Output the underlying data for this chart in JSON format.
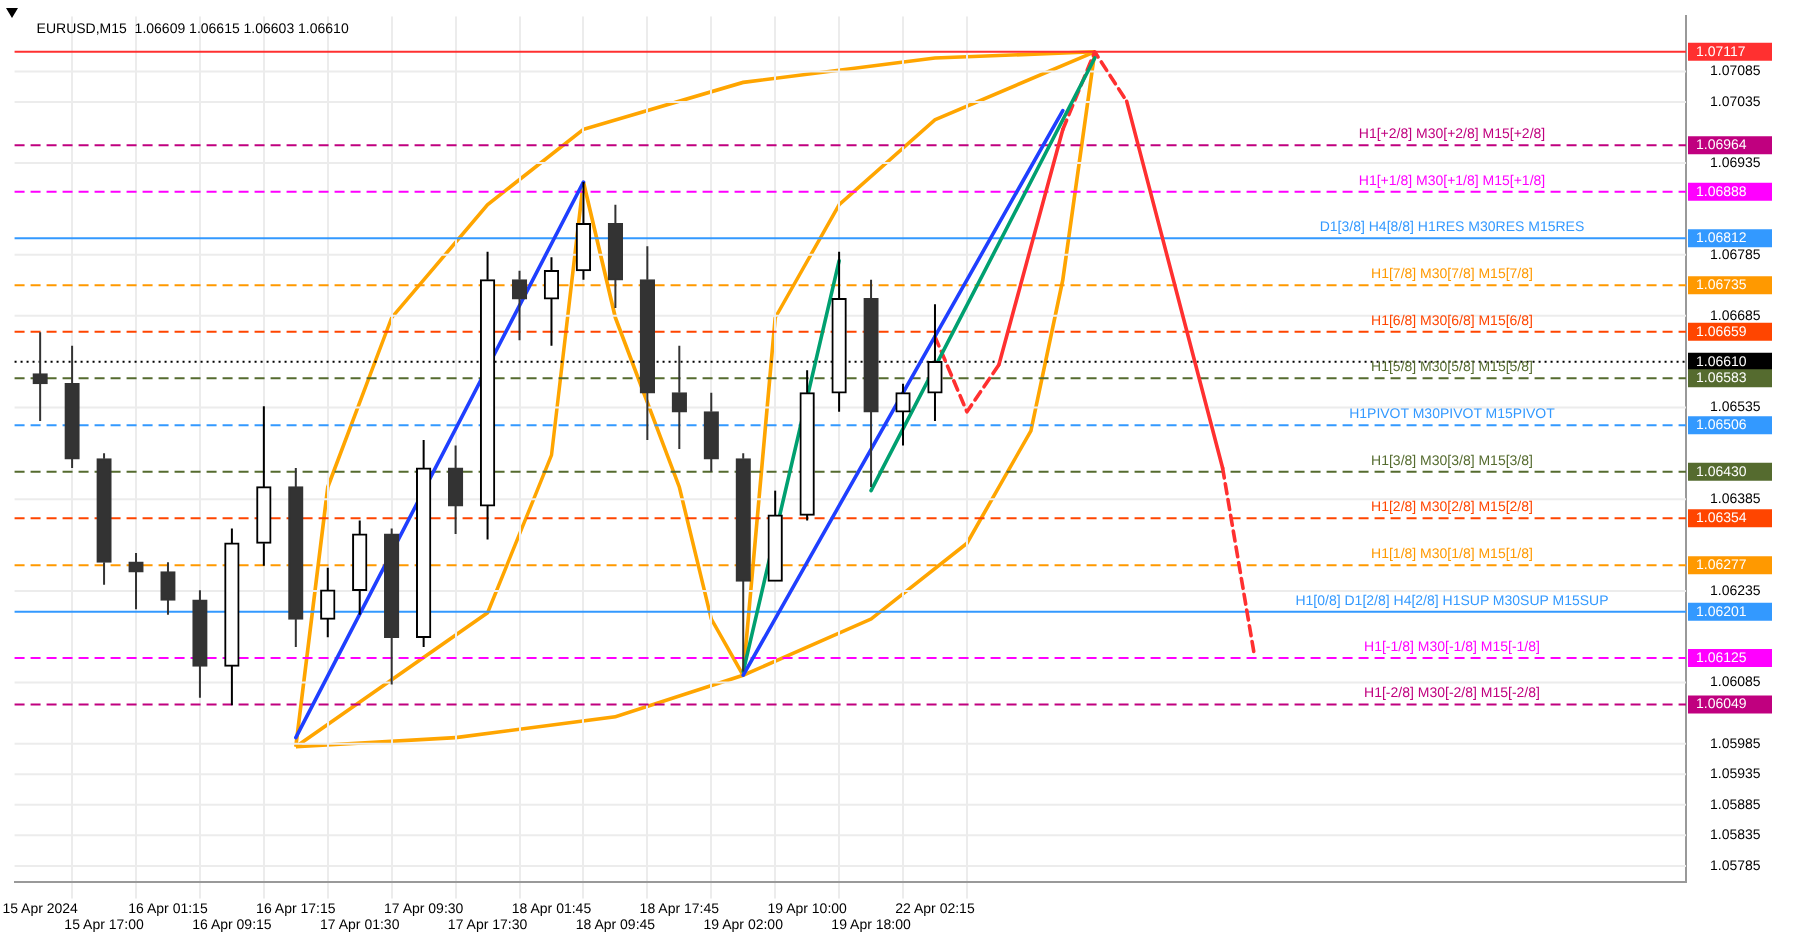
{
  "chart_data": {
    "type": "candlestick",
    "title": "EURUSD,M15  1.06609 1.06615 1.06603 1.06610",
    "colors": [
      "#333333",
      "#333333",
      "#333333",
      "#333333",
      "#333333",
      "#333333",
      "#000000",
      "#000000",
      "#333333",
      "#000000",
      "#000000",
      "#333333",
      "#000000",
      "#333333",
      "#000000",
      "#333333",
      "#000000",
      "#000000",
      "#333333",
      "#333333",
      "#333333",
      "#333333",
      "#333333",
      "#000000",
      "#000000",
      "#000000",
      "#333333",
      "#000000",
      "#000000",
      null,
      null,
      null,
      null,
      null,
      null,
      null,
      null,
      null,
      null,
      null,
      null,
      null,
      null,
      null,
      null,
      null,
      null,
      null,
      null,
      null,
      null,
      null
    ],
    "categories": [
      "15 Apr 2024",
      null,
      "15 Apr 17:00",
      null,
      "16 Apr 01:15",
      null,
      "16 Apr 09:15",
      null,
      "16 Apr 17:15",
      null,
      "17 Apr 01:30",
      null,
      "17 Apr 09:30",
      null,
      "17 Apr 17:30",
      null,
      "18 Apr 01:45",
      null,
      "18 Apr 09:45",
      null,
      "18 Apr 17:45",
      null,
      "19 Apr 02:00",
      null,
      "19 Apr 10:00",
      null,
      "19 Apr 18:00",
      null,
      "22 Apr 02:15",
      null,
      null,
      null,
      null,
      null,
      null,
      null,
      null,
      null,
      null,
      null,
      null,
      null,
      null,
      null,
      null,
      null,
      null,
      null,
      null,
      null,
      null,
      null
    ],
    "ohlc": [
      [
        1.0659,
        1.06658,
        1.06513,
        1.06574
      ],
      [
        1.06574,
        1.06636,
        1.06436,
        1.06451
      ],
      [
        1.06451,
        1.0646,
        1.06245,
        1.06282
      ],
      [
        1.06282,
        1.06297,
        1.06205,
        1.06266
      ],
      [
        1.06266,
        1.06282,
        1.06196,
        1.0622
      ],
      [
        1.0622,
        1.06236,
        1.0606,
        1.06112
      ],
      [
        1.06112,
        1.06337,
        1.06048,
        1.06313
      ],
      [
        1.06313,
        1.06537,
        1.06276,
        1.06405
      ],
      [
        1.06405,
        1.06436,
        1.06143,
        1.06189
      ],
      [
        1.06189,
        1.06273,
        1.06159,
        1.06236
      ],
      [
        1.06236,
        1.0635,
        1.06196,
        1.06328
      ],
      [
        1.06328,
        1.06337,
        1.06082,
        1.06159
      ],
      [
        1.06159,
        1.06482,
        1.06143,
        1.06436
      ],
      [
        1.06436,
        1.06473,
        1.06328,
        1.06374
      ],
      [
        1.06374,
        1.0679,
        1.06319,
        1.06744
      ],
      [
        1.06744,
        1.06759,
        1.06645,
        1.06713
      ],
      [
        1.06713,
        1.06781,
        1.06636,
        1.06759
      ],
      [
        1.06759,
        1.06904,
        1.06744,
        1.06836
      ],
      [
        1.06836,
        1.06867,
        1.06698,
        1.06744
      ],
      [
        1.06744,
        1.06799,
        1.06482,
        1.06559
      ],
      [
        1.06559,
        1.06636,
        1.06467,
        1.06528
      ],
      [
        1.06528,
        1.06559,
        1.0643,
        1.06451
      ],
      [
        1.06451,
        1.0646,
        1.06103,
        1.06251
      ],
      [
        1.06251,
        1.06399,
        1.06251,
        1.06359
      ],
      [
        1.06359,
        1.06596,
        1.0635,
        1.06559
      ],
      [
        1.06559,
        1.0679,
        1.06528,
        1.06713
      ],
      [
        1.06713,
        1.06744,
        1.06405,
        1.06528
      ],
      [
        1.06528,
        1.06574,
        1.06473,
        1.06559
      ],
      [
        1.06559,
        1.06704,
        1.06513,
        1.0661
      ],
      null,
      null,
      null,
      null,
      null,
      null,
      null,
      null,
      null,
      null,
      null,
      null,
      null,
      null,
      null,
      null,
      null,
      null,
      null,
      null,
      null,
      null,
      null
    ],
    "series": [
      {
        "type": "line",
        "color": "#1f3fff",
        "line_style": "solid",
        "values": [
          null,
          null,
          null,
          null,
          null,
          null,
          null,
          null,
          1.05995,
          null,
          null,
          null,
          null,
          null,
          null,
          null,
          null,
          1.06904,
          null,
          null,
          null,
          null,
          null,
          null,
          null,
          null,
          null,
          null,
          null,
          null,
          null,
          null,
          null,
          null,
          null,
          null,
          null,
          null,
          null,
          null,
          null,
          null,
          null,
          null,
          null,
          null,
          null,
          null,
          null,
          null,
          null,
          null
        ]
      },
      {
        "type": "line",
        "color": "#1f3fff",
        "line_style": "solid",
        "values": [
          null,
          null,
          null,
          null,
          null,
          null,
          null,
          null,
          null,
          null,
          null,
          null,
          null,
          null,
          null,
          null,
          null,
          null,
          null,
          null,
          null,
          null,
          1.06097,
          null,
          null,
          null,
          null,
          null,
          null,
          null,
          null,
          null,
          1.07021,
          null,
          null,
          null,
          null,
          null,
          null,
          null,
          null,
          null,
          null,
          null,
          null,
          null,
          null,
          null,
          null,
          null,
          null,
          null
        ]
      },
      {
        "type": "line",
        "color": "#00a070",
        "line_style": "solid",
        "values": [
          null,
          null,
          null,
          null,
          null,
          null,
          null,
          null,
          null,
          null,
          null,
          null,
          null,
          null,
          null,
          null,
          null,
          null,
          null,
          null,
          null,
          null,
          1.06103,
          null,
          null,
          1.06775,
          null,
          null,
          null,
          null,
          null,
          null,
          null,
          null,
          null,
          null,
          null,
          null,
          null,
          null,
          null,
          null,
          null,
          null,
          null,
          null,
          null,
          null,
          null,
          null,
          null,
          null
        ]
      },
      {
        "type": "line",
        "color": "#00a070",
        "line_style": "solid",
        "values": [
          null,
          null,
          null,
          null,
          null,
          null,
          null,
          null,
          null,
          null,
          null,
          null,
          null,
          null,
          null,
          null,
          null,
          null,
          null,
          null,
          null,
          null,
          null,
          null,
          null,
          null,
          1.06399,
          null,
          null,
          null,
          null,
          null,
          null,
          1.07107,
          null,
          null,
          null,
          null,
          null,
          null,
          null,
          null,
          null,
          null,
          null,
          null,
          null,
          null,
          null,
          null,
          null,
          null
        ]
      },
      {
        "type": "line",
        "color": "#ff3030",
        "line_style": "dashed",
        "values": [
          null,
          null,
          null,
          null,
          null,
          null,
          null,
          null,
          null,
          null,
          null,
          null,
          null,
          null,
          null,
          null,
          null,
          null,
          null,
          null,
          null,
          null,
          null,
          null,
          null,
          null,
          null,
          null,
          1.06651,
          1.06528,
          1.06605,
          null,
          null,
          null,
          null,
          null,
          null,
          null,
          null,
          null,
          null,
          null,
          null,
          null,
          null,
          null,
          null,
          null,
          null,
          null,
          null,
          null
        ]
      },
      {
        "type": "line",
        "color": "#ff3030",
        "line_style": "solid",
        "values": [
          null,
          null,
          null,
          null,
          null,
          null,
          null,
          null,
          null,
          null,
          null,
          null,
          null,
          null,
          null,
          null,
          null,
          null,
          null,
          null,
          null,
          null,
          null,
          null,
          null,
          null,
          null,
          null,
          null,
          null,
          1.06605,
          null,
          1.0699,
          null,
          null,
          null,
          null,
          null,
          null,
          null,
          null,
          null,
          null,
          null,
          null,
          null,
          null,
          null,
          null,
          null,
          null,
          null
        ]
      },
      {
        "type": "line",
        "color": "#ff3030",
        "line_style": "dashed",
        "values": [
          null,
          null,
          null,
          null,
          null,
          null,
          null,
          null,
          null,
          null,
          null,
          null,
          null,
          null,
          null,
          null,
          null,
          null,
          null,
          null,
          null,
          null,
          null,
          null,
          null,
          null,
          null,
          null,
          null,
          null,
          null,
          null,
          1.0699,
          1.07117,
          1.07036,
          null,
          null,
          null,
          null,
          null,
          null,
          null,
          null,
          null,
          null,
          null,
          null,
          null,
          null,
          null,
          null,
          null
        ]
      },
      {
        "type": "line",
        "color": "#ff3030",
        "line_style": "solid",
        "values": [
          null,
          null,
          null,
          null,
          null,
          null,
          null,
          null,
          null,
          null,
          null,
          null,
          null,
          null,
          null,
          null,
          null,
          null,
          null,
          null,
          null,
          null,
          null,
          null,
          null,
          null,
          null,
          null,
          null,
          null,
          null,
          null,
          null,
          null,
          1.07036,
          null,
          null,
          1.06436,
          null,
          null,
          null,
          null,
          null,
          null,
          null,
          null,
          null,
          null,
          null,
          null,
          null,
          null
        ]
      },
      {
        "type": "line",
        "color": "#ff3030",
        "line_style": "dashed",
        "values": [
          null,
          null,
          null,
          null,
          null,
          null,
          null,
          null,
          null,
          null,
          null,
          null,
          null,
          null,
          null,
          null,
          null,
          null,
          null,
          null,
          null,
          null,
          null,
          null,
          null,
          null,
          null,
          null,
          null,
          null,
          null,
          null,
          null,
          null,
          null,
          null,
          null,
          1.06436,
          1.06128,
          null,
          null,
          null,
          null,
          null,
          null,
          null,
          null,
          null,
          null,
          null,
          null,
          null
        ]
      }
    ],
    "ref_lines": [
      {
        "axis": "y",
        "value": 1.07117,
        "label": null,
        "color": "#ff3030",
        "line_style": "solid"
      },
      {
        "axis": "y",
        "value": 1.06964,
        "label": "H1[+2/8] M30[+2/8] M15[+2/8]",
        "color": "#c0007f",
        "line_style": "dashed"
      },
      {
        "axis": "y",
        "value": 1.06888,
        "label": "H1[+1/8] M30[+1/8] M15[+1/8]",
        "color": "#ff00ff",
        "line_style": "dashed"
      },
      {
        "axis": "y",
        "value": 1.06812,
        "label": "D1[3/8] H4[8/8] H1RES M30RES M15RES",
        "color": "#3399ff",
        "line_style": "solid"
      },
      {
        "axis": "y",
        "value": 1.06735,
        "label": "H1[7/8] M30[7/8] M15[7/8]",
        "color": "#ff9900",
        "line_style": "dashed"
      },
      {
        "axis": "y",
        "value": 1.06659,
        "label": "H1[6/8] M30[6/8] M15[6/8]",
        "color": "#ff4500",
        "line_style": "dashed"
      },
      {
        "axis": "y",
        "value": 1.0661,
        "label": null,
        "color": "#000000",
        "line_style": "dotted"
      },
      {
        "axis": "y",
        "value": 1.06583,
        "label": "H1[5/8] M30[5/8] M15[5/8]",
        "color": "#556b2f",
        "line_style": "dashed"
      },
      {
        "axis": "y",
        "value": 1.06506,
        "label": "H1PIVOT M30PIVOT M15PIVOT",
        "color": "#3399ff",
        "line_style": "dashed"
      },
      {
        "axis": "y",
        "value": 1.0643,
        "label": "H1[3/8] M30[3/8] M15[3/8]",
        "color": "#556b2f",
        "line_style": "dashed"
      },
      {
        "axis": "y",
        "value": 1.06354,
        "label": "H1[2/8] M30[2/8] M15[2/8]",
        "color": "#ff4500",
        "line_style": "dashed"
      },
      {
        "axis": "y",
        "value": 1.06277,
        "label": "H1[1/8] M30[1/8] M15[1/8]",
        "color": "#ff9900",
        "line_style": "dashed"
      },
      {
        "axis": "y",
        "value": 1.06201,
        "label": "H1[0/8] D1[2/8] H4[2/8] H1SUP M30SUP M15SUP",
        "color": "#3399ff",
        "line_style": "solid"
      },
      {
        "axis": "y",
        "value": 1.06125,
        "label": "H1[-1/8] M30[-1/8] M15[-1/8]",
        "color": "#ff00ff",
        "line_style": "dashed"
      },
      {
        "axis": "y",
        "value": 1.06049,
        "label": "H1[-2/8] M30[-2/8] M15[-2/8]",
        "color": "#c0007f",
        "line_style": "dashed"
      }
    ],
    "ylim": [
      1.05758,
      1.07175
    ],
    "annotations": [
      "1.07117",
      "1.06964",
      "1.06888",
      "1.06812",
      "1.06735",
      "1.06659",
      "1.06610",
      "1.06583",
      "1.06506",
      "1.06430",
      "1.06354",
      "1.06277",
      "1.06201",
      "1.06125",
      "1.06049"
    ],
    "yticks": [
      1.07085,
      1.07035,
      1.06935,
      1.06785,
      1.06685,
      1.06535,
      1.06385,
      1.06235,
      1.06085,
      1.05985,
      1.05935,
      1.05885,
      1.05835,
      1.05785
    ],
    "grid": true,
    "legend": false,
    "marker": "none"
  }
}
